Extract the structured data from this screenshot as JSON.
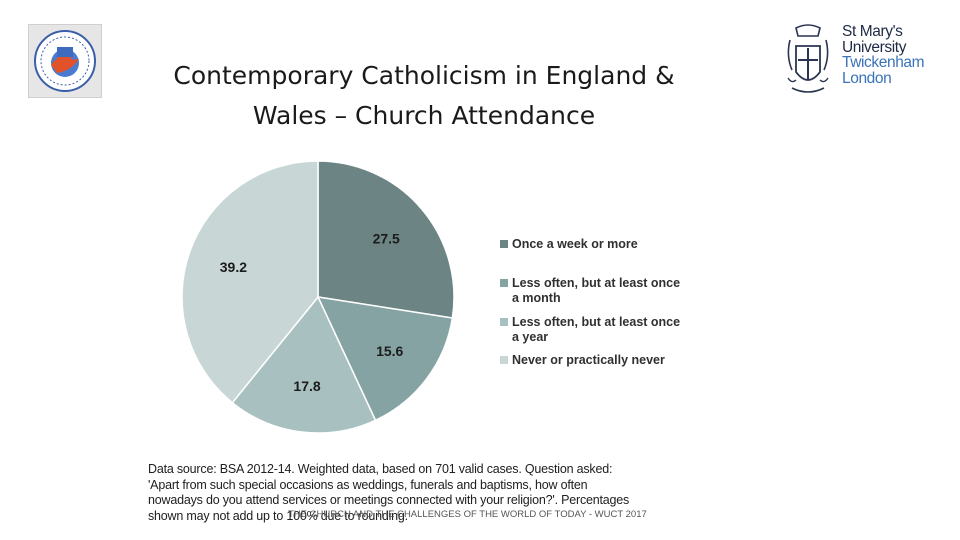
{
  "logo_left": {
    "icon": "globe-dove-logo"
  },
  "university": {
    "line1": "St Mary's",
    "line2": "University",
    "line3": "Twickenham",
    "line4": "London",
    "colors": {
      "dark": "#1f2a44",
      "blue": "#3a73b8"
    }
  },
  "title": {
    "line1": "Contemporary Catholicism in England &",
    "line2": "Wales – Church Attendance"
  },
  "chart_data": {
    "type": "pie",
    "categories": [
      "Once a week or more",
      "Less often, but at least once a month",
      "Less often, but at least once a year",
      "Never or practically never"
    ],
    "legend_lines": [
      [
        "Once a week or more"
      ],
      [
        "Less often, but at least once",
        "a month"
      ],
      [
        "Less often, but at least once",
        "a year"
      ],
      [
        "Never or practically never"
      ]
    ],
    "values": [
      27.5,
      15.6,
      17.8,
      39.2
    ],
    "labels": [
      "27.5",
      "15.6",
      "17.8",
      "39.2"
    ],
    "colors": [
      "#6c8584",
      "#86a3a3",
      "#a9c0c0",
      "#c8d6d6"
    ],
    "legend_placement": "right"
  },
  "source": {
    "lines": [
      "Data source: BSA 2012-14.  Weighted data, based on 701 valid cases. Question asked:",
      "'Apart from such special occasions as weddings, funerals and baptisms, how often",
      "nowadays do you attend services or meetings connected with your religion?'. Percentages",
      "shown may not add up to 100% due to rounding."
    ]
  },
  "footer": "THE CHURCH AND THE CHALLENGES OF THE WORLD OF TODAY - WUCT 2017"
}
